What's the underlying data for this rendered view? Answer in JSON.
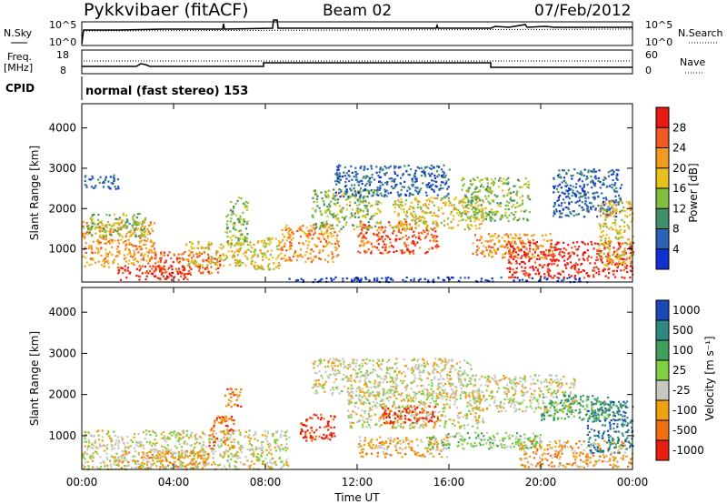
{
  "header": {
    "station": "Pykkvibaer (fitACF)",
    "beam": "Beam 02",
    "date": "07/Feb/2012"
  },
  "noise_panel": {
    "left_label": "N.Sky",
    "left_ticks": [
      "10^5",
      "10^0"
    ],
    "right_label": "N.Search",
    "right_ticks": [
      "10^5",
      "10^0"
    ]
  },
  "freq_panel": {
    "left_label_1": "Freq.",
    "left_label_2": "[MHz]",
    "left_ticks": [
      "18",
      "8"
    ],
    "right_label": "Nave",
    "right_ticks": [
      "60",
      "0"
    ]
  },
  "cpid": {
    "label": "CPID",
    "text": "normal (fast stereo) 153"
  },
  "time_axis": {
    "labels": [
      "00:00",
      "04:00",
      "08:00",
      "12:00",
      "16:00",
      "20:00",
      "00:00"
    ],
    "title": "Time UT"
  },
  "chart_data": [
    {
      "type": "heatmap",
      "id": "power",
      "ylabel": "Slant Range [km]",
      "yticks": [
        1000,
        2000,
        3000,
        4000
      ],
      "ylim": [
        180,
        4600
      ],
      "xlim_hours": [
        0,
        24
      ],
      "colorbar": {
        "label": "Power [dB]",
        "ticks": [
          "4",
          "8",
          "12",
          "16",
          "20",
          "24",
          "28"
        ],
        "colors": [
          "#1030d0",
          "#2a62b8",
          "#3f8f6a",
          "#7fbf40",
          "#e8c020",
          "#f39a20",
          "#f05a20",
          "#e81a14"
        ]
      },
      "regions": [
        {
          "t0": 0.0,
          "t1": 3.2,
          "r0": 550,
          "r1": 1700,
          "level": 5
        },
        {
          "t0": 0.2,
          "t1": 2.8,
          "r0": 1300,
          "r1": 1900,
          "level": 3
        },
        {
          "t0": 3.0,
          "t1": 6.0,
          "r0": 400,
          "r1": 950,
          "level": 6
        },
        {
          "t0": 1.5,
          "t1": 4.8,
          "r0": 250,
          "r1": 600,
          "level": 7
        },
        {
          "t0": 4.5,
          "t1": 7.5,
          "r0": 600,
          "r1": 1200,
          "level": 4
        },
        {
          "t0": 6.2,
          "t1": 7.2,
          "r0": 1100,
          "r1": 2300,
          "level": 3
        },
        {
          "t0": 7.3,
          "t1": 8.6,
          "r0": 500,
          "r1": 1300,
          "level": 4
        },
        {
          "t0": 8.6,
          "t1": 11.2,
          "r0": 700,
          "r1": 1650,
          "level": 5
        },
        {
          "t0": 10.0,
          "t1": 13.0,
          "r0": 1500,
          "r1": 2500,
          "level": 3
        },
        {
          "t0": 11.0,
          "t1": 16.0,
          "r0": 2300,
          "r1": 3100,
          "level": 1
        },
        {
          "t0": 12.0,
          "t1": 15.5,
          "r0": 900,
          "r1": 1700,
          "level": 6
        },
        {
          "t0": 13.5,
          "t1": 17.5,
          "r0": 1500,
          "r1": 2300,
          "level": 4
        },
        {
          "t0": 16.5,
          "t1": 19.5,
          "r0": 1700,
          "r1": 2800,
          "level": 3
        },
        {
          "t0": 17.0,
          "t1": 20.5,
          "r0": 800,
          "r1": 1400,
          "level": 5
        },
        {
          "t0": 18.5,
          "t1": 24.0,
          "r0": 300,
          "r1": 1200,
          "level": 7
        },
        {
          "t0": 20.5,
          "t1": 23.5,
          "r0": 1800,
          "r1": 3000,
          "level": 1
        },
        {
          "t0": 22.5,
          "t1": 24.0,
          "r0": 600,
          "r1": 2200,
          "level": 4
        },
        {
          "t0": 9.0,
          "t1": 22.0,
          "r0": 200,
          "r1": 320,
          "level": 0
        },
        {
          "t0": 0.1,
          "t1": 1.6,
          "r0": 2500,
          "r1": 2850,
          "level": 1
        }
      ]
    },
    {
      "type": "heatmap",
      "id": "velocity",
      "ylabel": "Slant Range [km]",
      "yticks": [
        1000,
        2000,
        3000,
        4000
      ],
      "ylim": [
        180,
        4600
      ],
      "xlim_hours": [
        0,
        24
      ],
      "colorbar": {
        "label": "Velocity [m s⁻¹]",
        "ticks": [
          "1000",
          "500",
          "100",
          "25",
          "-25",
          "-100",
          "-500",
          "-1000"
        ],
        "colors": [
          "#1a48b8",
          "#2e8a80",
          "#3fa05a",
          "#7fd040",
          "#c8c8c0",
          "#f0a010",
          "#f07010",
          "#e82010"
        ]
      },
      "regions": [
        {
          "t0": 0.0,
          "t1": 9.0,
          "r0": 200,
          "r1": 1150,
          "level": 4
        },
        {
          "t0": 1.5,
          "t1": 5.5,
          "r0": 200,
          "r1": 650,
          "level": 5
        },
        {
          "t0": 5.5,
          "t1": 6.6,
          "r0": 700,
          "r1": 1500,
          "level": 6
        },
        {
          "t0": 6.2,
          "t1": 6.9,
          "r0": 1700,
          "r1": 2200,
          "level": 6
        },
        {
          "t0": 9.5,
          "t1": 11.0,
          "r0": 900,
          "r1": 1550,
          "level": 7
        },
        {
          "t0": 10.0,
          "t1": 17.0,
          "r0": 2000,
          "r1": 2900,
          "level": 4
        },
        {
          "t0": 11.5,
          "t1": 17.5,
          "r0": 1200,
          "r1": 2100,
          "level": 4
        },
        {
          "t0": 13.0,
          "t1": 15.5,
          "r0": 1300,
          "r1": 1750,
          "level": 7
        },
        {
          "t0": 12.0,
          "t1": 16.0,
          "r0": 500,
          "r1": 1000,
          "level": 5
        },
        {
          "t0": 15.0,
          "t1": 20.0,
          "r0": 700,
          "r1": 1100,
          "level": 3
        },
        {
          "t0": 17.0,
          "t1": 21.5,
          "r0": 1600,
          "r1": 2500,
          "level": 4
        },
        {
          "t0": 19.0,
          "t1": 24.0,
          "r0": 250,
          "r1": 900,
          "level": 5
        },
        {
          "t0": 22.0,
          "t1": 24.0,
          "r0": 600,
          "r1": 1900,
          "level": 1
        },
        {
          "t0": 20.0,
          "t1": 23.0,
          "r0": 1400,
          "r1": 2000,
          "level": 2
        }
      ]
    }
  ]
}
